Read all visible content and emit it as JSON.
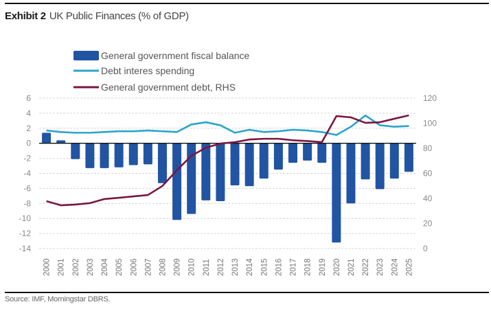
{
  "header": {
    "exhibit": "Exhibit 2",
    "title": "UK Public Finances (% of GDP)"
  },
  "footer": {
    "source": "Source: IMF, Morningstar DBRS."
  },
  "colors": {
    "bar": "#2154a3",
    "interest_line": "#2aa4cc",
    "debt_line": "#7a1640",
    "zero_line": "#111111",
    "grid": "#d6d6d6"
  },
  "chart_data": {
    "type": "bar",
    "title": "UK Public Finances (% of GDP)",
    "xlabel": "",
    "ylabel": "",
    "y2label": "",
    "grid": true,
    "legend_position": "top-left",
    "categories": [
      "2000",
      "2001",
      "2002",
      "2003",
      "2004",
      "2005",
      "2006",
      "2007",
      "2008",
      "2009",
      "2010",
      "2011",
      "2012",
      "2013",
      "2014",
      "2015",
      "2016",
      "2017",
      "2018",
      "2019",
      "2020",
      "2021",
      "2022",
      "2023",
      "2024",
      "2025"
    ],
    "ylim": [
      -14,
      6
    ],
    "yticks": [
      6,
      4,
      2,
      0,
      -2,
      -4,
      -6,
      -8,
      -10,
      -12,
      -14
    ],
    "y2lim": [
      0,
      120
    ],
    "y2ticks": [
      120,
      100,
      80,
      60,
      40,
      20,
      0
    ],
    "series": [
      {
        "name": "General government fiscal balance",
        "type": "bar",
        "axis": "left",
        "values": [
          1.4,
          0.4,
          -2.1,
          -3.3,
          -3.3,
          -3.2,
          -2.9,
          -2.8,
          -5.3,
          -10.2,
          -9.4,
          -7.6,
          -7.7,
          -5.6,
          -5.7,
          -4.7,
          -3.5,
          -2.6,
          -2.3,
          -2.6,
          -13.2,
          -8.0,
          -4.8,
          -6.1,
          -4.7,
          -3.8
        ]
      },
      {
        "name": "Debt interes spending",
        "type": "line",
        "axis": "left",
        "values": [
          1.7,
          1.5,
          1.4,
          1.4,
          1.5,
          1.6,
          1.6,
          1.7,
          1.6,
          1.5,
          2.5,
          2.8,
          2.4,
          1.4,
          1.8,
          1.5,
          1.6,
          1.8,
          1.7,
          1.5,
          1.1,
          2.2,
          3.7,
          2.4,
          2.2,
          2.3
        ]
      },
      {
        "name": "General government debt, RHS",
        "type": "line",
        "axis": "right",
        "values": [
          37.8,
          34.5,
          35.1,
          36.2,
          39.5,
          40.5,
          41.6,
          42.7,
          49.9,
          62.5,
          74.0,
          80.5,
          83.8,
          84.9,
          87.0,
          87.6,
          87.6,
          86.4,
          85.8,
          84.9,
          105.7,
          104.7,
          100.3,
          100.8,
          103.6,
          106.3
        ]
      }
    ]
  }
}
